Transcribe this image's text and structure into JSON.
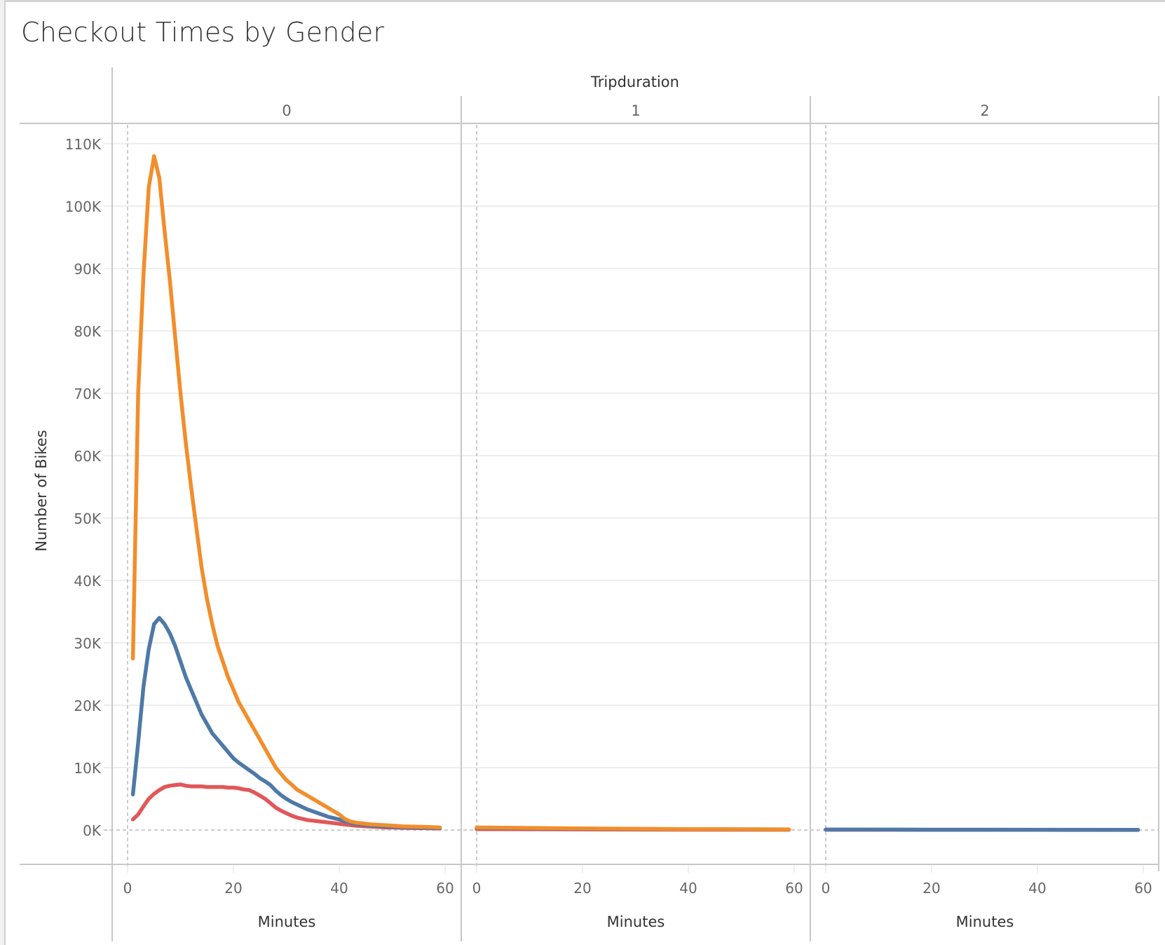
{
  "title": "Checkout Times by Gender",
  "header": {
    "column_field": "Tripduration",
    "panels": [
      "0",
      "1",
      "2"
    ]
  },
  "y_axis": {
    "title": "Number of Bikes",
    "ticks": [
      "0K",
      "10K",
      "20K",
      "30K",
      "40K",
      "50K",
      "60K",
      "70K",
      "80K",
      "90K",
      "100K",
      "110K"
    ]
  },
  "x_axis": {
    "title": "Minutes",
    "ticks": [
      "0",
      "20",
      "40",
      "60"
    ]
  },
  "colors": {
    "orange": "#f28e2b",
    "blue": "#4e79a7",
    "red": "#e15759",
    "grid": "#eeeeee",
    "border": "#c8c8c8",
    "zero_line": "#bbbbbb"
  },
  "chart_data": {
    "type": "line",
    "title": "Checkout Times by Gender",
    "facet_field": "Tripduration",
    "facets": [
      "0",
      "1",
      "2"
    ],
    "xlabel": "Minutes",
    "ylabel": "Number of Bikes",
    "xlim": [
      0,
      60
    ],
    "ylim": [
      -8000,
      112000
    ],
    "grid": true,
    "legend": "none",
    "x": [
      1,
      2,
      3,
      4,
      5,
      6,
      7,
      8,
      9,
      10,
      11,
      12,
      13,
      14,
      15,
      16,
      17,
      18,
      19,
      20,
      21,
      22,
      23,
      24,
      25,
      26,
      27,
      28,
      29,
      30,
      31,
      32,
      33,
      34,
      35,
      36,
      37,
      38,
      39,
      40,
      41,
      42,
      43,
      44,
      45,
      46,
      47,
      48,
      49,
      50,
      52,
      54,
      56,
      58,
      59
    ],
    "series": [
      {
        "name": "orange",
        "color": "#f28e2b",
        "facet": "0",
        "values": [
          27500,
          70000,
          89000,
          103000,
          108000,
          104500,
          96000,
          88000,
          79000,
          70000,
          62000,
          55000,
          48500,
          42000,
          37000,
          33000,
          29500,
          27000,
          24500,
          22500,
          20500,
          19000,
          17500,
          16000,
          14500,
          13000,
          11500,
          10000,
          9000,
          8000,
          7300,
          6500,
          6000,
          5500,
          5000,
          4500,
          4000,
          3500,
          3000,
          2500,
          1800,
          1400,
          1200,
          1100,
          1000,
          900,
          850,
          800,
          750,
          700,
          600,
          550,
          500,
          450,
          400
        ]
      },
      {
        "name": "blue",
        "color": "#4e79a7",
        "facet": "0",
        "values": [
          5700,
          14000,
          23000,
          29000,
          33000,
          34000,
          33000,
          31500,
          29500,
          27000,
          24500,
          22500,
          20500,
          18500,
          17000,
          15500,
          14500,
          13500,
          12500,
          11500,
          10800,
          10200,
          9600,
          9000,
          8300,
          7800,
          7200,
          6300,
          5600,
          5000,
          4500,
          4100,
          3700,
          3300,
          3000,
          2700,
          2400,
          2100,
          1900,
          1700,
          1400,
          1200,
          1000,
          900,
          800,
          700,
          650,
          600,
          550,
          500,
          450,
          400,
          350,
          300,
          300
        ]
      },
      {
        "name": "red",
        "color": "#e15759",
        "facet": "0",
        "values": [
          1700,
          2500,
          3800,
          5000,
          5800,
          6400,
          6900,
          7100,
          7200,
          7300,
          7100,
          7000,
          7000,
          7000,
          6900,
          6900,
          6900,
          6900,
          6800,
          6800,
          6700,
          6500,
          6400,
          6000,
          5500,
          5000,
          4300,
          3600,
          3100,
          2700,
          2300,
          2000,
          1800,
          1600,
          1500,
          1400,
          1300,
          1200,
          1100,
          1000,
          900,
          800,
          700,
          650,
          600,
          550,
          500,
          450,
          400,
          400,
          350,
          300,
          300,
          250,
          250
        ]
      },
      {
        "name": "orange",
        "color": "#f28e2b",
        "facet": "1",
        "x": [
          0,
          20,
          40,
          59
        ],
        "values": [
          400,
          250,
          150,
          100
        ]
      },
      {
        "name": "blue",
        "color": "#4e79a7",
        "facet": "1",
        "x": [
          0,
          20,
          40,
          59
        ],
        "values": [
          300,
          200,
          120,
          80
        ]
      },
      {
        "name": "red",
        "color": "#e15759",
        "facet": "1",
        "x": [
          0,
          20,
          40,
          59
        ],
        "values": [
          150,
          100,
          60,
          40
        ]
      },
      {
        "name": "blue",
        "color": "#4e79a7",
        "facet": "2",
        "x": [
          0,
          20,
          40,
          59
        ],
        "values": [
          80,
          60,
          40,
          30
        ]
      },
      {
        "name": "red",
        "color": "#e15759",
        "facet": "2",
        "x": [
          0,
          20,
          40,
          59
        ],
        "values": [
          40,
          30,
          20,
          15
        ]
      }
    ]
  }
}
